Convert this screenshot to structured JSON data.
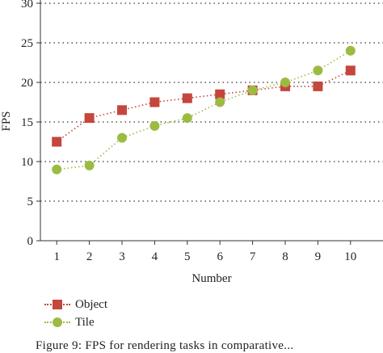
{
  "chart_data": {
    "type": "line",
    "xlabel": "Number",
    "ylabel": "FPS",
    "x": [
      1,
      2,
      3,
      4,
      5,
      6,
      7,
      8,
      9,
      10
    ],
    "xlim": [
      0.5,
      10.5
    ],
    "ylim": [
      0,
      30
    ],
    "yticks": [
      0,
      5,
      10,
      15,
      20,
      25,
      30
    ],
    "grid": "horizontal-dotted",
    "legend_position": "bottom-left",
    "series": [
      {
        "name": "Object",
        "marker": "square",
        "color": "#c4463d",
        "values": [
          12.5,
          15.5,
          16.5,
          17.5,
          18,
          18.5,
          19,
          19.5,
          19.5,
          21.5
        ]
      },
      {
        "name": "Tile",
        "marker": "circle",
        "color": "#9cbb43",
        "values": [
          9,
          9.5,
          13,
          14.5,
          15.5,
          17.5,
          19,
          20,
          21.5,
          24
        ]
      }
    ]
  },
  "caption": "Figure 9: FPS for rendering tasks in comparative..."
}
